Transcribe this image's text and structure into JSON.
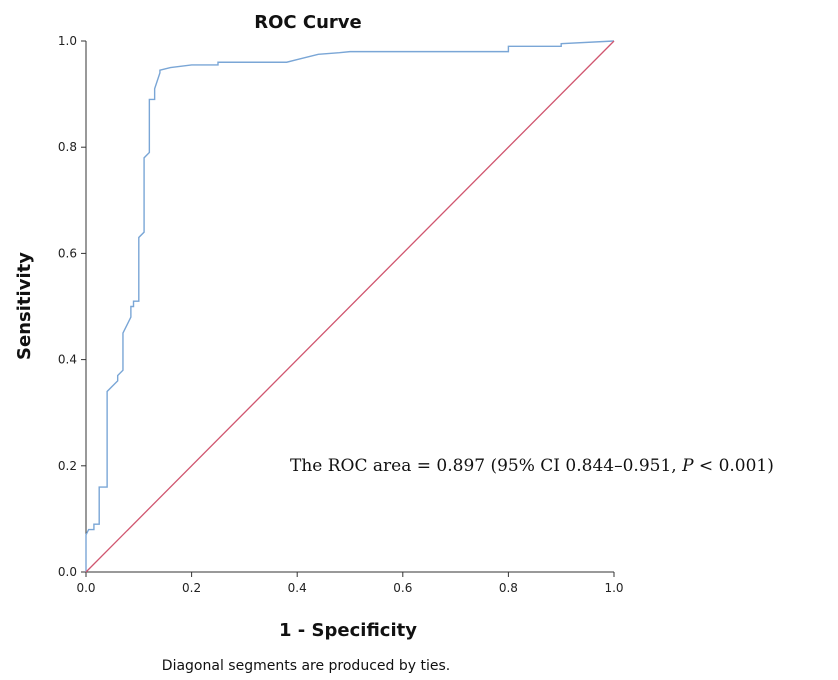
{
  "chart_data": {
    "type": "line",
    "title": "ROC Curve",
    "xlabel": "1 - Specificity",
    "ylabel": "Sensitivity",
    "xlim": [
      0,
      1
    ],
    "ylim": [
      0,
      1
    ],
    "x_ticks": [
      "0.0",
      "0.2",
      "0.4",
      "0.6",
      "0.8",
      "1.0"
    ],
    "y_ticks": [
      "0.0",
      "0.2",
      "0.4",
      "0.6",
      "0.8",
      "1.0"
    ],
    "grid": false,
    "series": [
      {
        "color": "#7aa6d6",
        "x": [
          0,
          0,
          0.005,
          0.015,
          0.015,
          0.025,
          0.025,
          0.04,
          0.04,
          0.05,
          0.06,
          0.06,
          0.07,
          0.07,
          0.08,
          0.085,
          0.085,
          0.09,
          0.09,
          0.1,
          0.1,
          0.11,
          0.11,
          0.12,
          0.12,
          0.13,
          0.13,
          0.14,
          0.14,
          0.16,
          0.2,
          0.25,
          0.25,
          0.3,
          0.35,
          0.38,
          0.4,
          0.42,
          0.44,
          0.48,
          0.5,
          0.6,
          0.7,
          0.8,
          0.8,
          0.9,
          0.9,
          1.0
        ],
        "y": [
          0,
          0.07,
          0.08,
          0.08,
          0.09,
          0.09,
          0.16,
          0.16,
          0.34,
          0.35,
          0.36,
          0.37,
          0.38,
          0.45,
          0.47,
          0.48,
          0.5,
          0.5,
          0.51,
          0.51,
          0.63,
          0.64,
          0.78,
          0.79,
          0.89,
          0.89,
          0.91,
          0.94,
          0.945,
          0.95,
          0.955,
          0.955,
          0.96,
          0.96,
          0.96,
          0.96,
          0.965,
          0.97,
          0.975,
          0.978,
          0.98,
          0.98,
          0.98,
          0.98,
          0.99,
          0.99,
          0.995,
          1.0
        ]
      },
      {
        "color": "#d0566f",
        "x": [
          0,
          1
        ],
        "y": [
          0,
          1
        ]
      }
    ],
    "annotation": "The ROC area = 0.897 (95% CI 0.844–0.951, P < 0.001)",
    "annotation_parts": {
      "prefix": "The ROC area =  0.897 (95% CI 0.844–0.951, ",
      "p": "P",
      "suffix": " < 0.001)"
    },
    "footnote": "Diagonal segments are produced by ties."
  }
}
